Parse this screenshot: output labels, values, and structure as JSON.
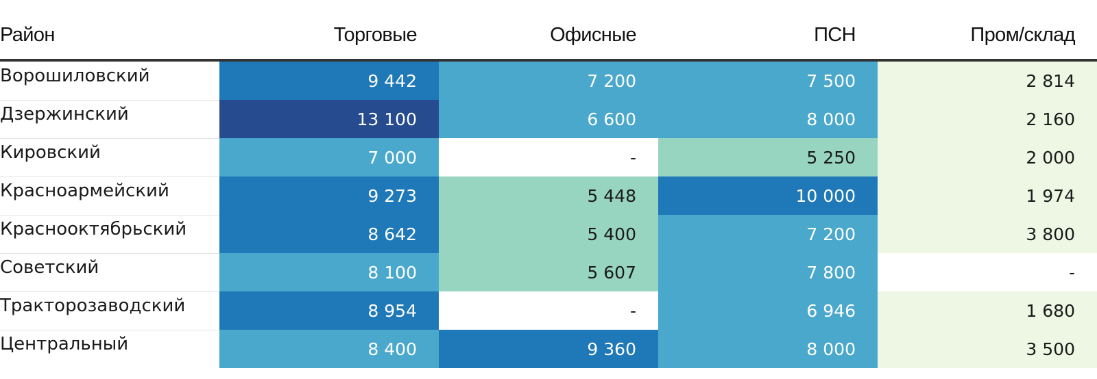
{
  "chart_data": {
    "type": "table",
    "columns": [
      "Район",
      "Торговые",
      "Офисные",
      "ПСН",
      "Пром/склад"
    ],
    "rows": [
      {
        "district": "Ворошиловский",
        "values": [
          "9 442",
          "7 200",
          "7 500",
          "2 814"
        ]
      },
      {
        "district": "Дзержинский",
        "values": [
          "13 100",
          "6 600",
          "8 000",
          "2 160"
        ]
      },
      {
        "district": "Кировский",
        "values": [
          "7 000",
          "-",
          "5 250",
          "2 000"
        ]
      },
      {
        "district": "Красноармейский",
        "values": [
          "9 273",
          "5 448",
          "10 000",
          "1 974"
        ]
      },
      {
        "district": "Краснооктябрьский",
        "values": [
          "8 642",
          "5 400",
          "7 200",
          "3 800"
        ]
      },
      {
        "district": "Советский",
        "values": [
          "8 100",
          "5 607",
          "7 800",
          "-"
        ]
      },
      {
        "district": "Тракторозаводский",
        "values": [
          "8 954",
          "-",
          "6 946",
          "1 680"
        ]
      },
      {
        "district": "Центральный",
        "values": [
          "8 400",
          "9 360",
          "8 000",
          "3 500"
        ]
      }
    ],
    "numeric_values": [
      [
        9442,
        7200,
        7500,
        2814
      ],
      [
        13100,
        6600,
        8000,
        2160
      ],
      [
        7000,
        null,
        5250,
        2000
      ],
      [
        9273,
        5448,
        10000,
        1974
      ],
      [
        8642,
        5400,
        7200,
        3800
      ],
      [
        8100,
        5607,
        7800,
        null
      ],
      [
        8954,
        null,
        6946,
        1680
      ],
      [
        8400,
        9360,
        8000,
        3500
      ]
    ],
    "color_scale": {
      "darkest": "#264b8f",
      "dark": "#1f78b8",
      "medium": "#4aa8cc",
      "light": "#98d5c1",
      "lightest": "#eef7e4",
      "empty": "#ffffff"
    },
    "grid": false,
    "legend": "none"
  }
}
